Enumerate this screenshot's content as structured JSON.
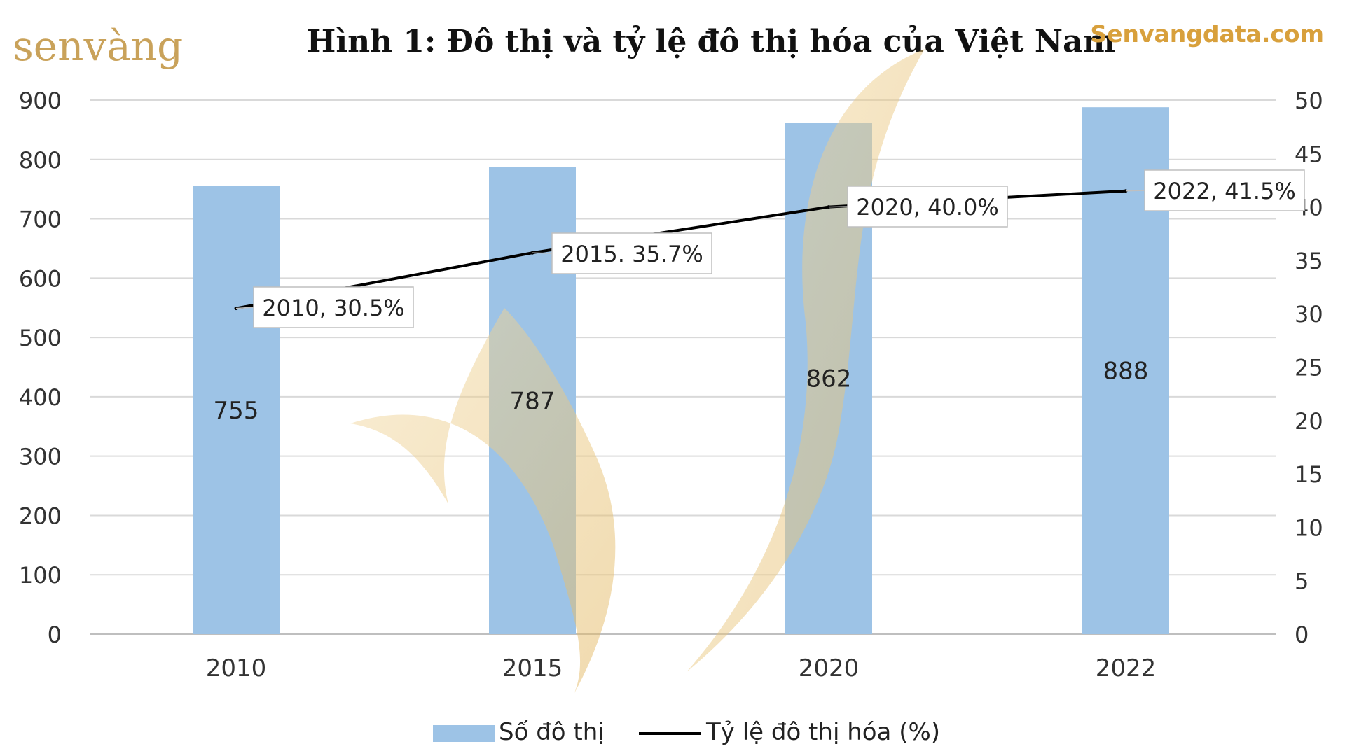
{
  "brand": {
    "logo_text": "senvàng",
    "site": "Senvangdata.com",
    "logo_color": "#c9a25a",
    "site_color": "#d8a03c"
  },
  "chart_data": {
    "type": "bar",
    "title": "Hình 1: Đô thị và tỷ lệ đô thị hóa của Việt Nam",
    "categories": [
      "2010",
      "2015",
      "2020",
      "2022"
    ],
    "series": [
      {
        "name": "Số đô thị",
        "type": "bar",
        "axis": "left",
        "color": "#9dc3e6",
        "values": [
          755,
          787,
          862,
          888
        ],
        "data_labels": [
          "755",
          "787",
          "862",
          "888"
        ]
      },
      {
        "name": "Tỷ lệ đô thị hóa (%)",
        "type": "line",
        "axis": "right",
        "color": "#000000",
        "values": [
          30.5,
          35.7,
          40.0,
          41.5
        ],
        "data_labels": [
          "2010, 30.5%",
          "2015. 35.7%",
          "2020, 40.0%",
          "2022, 41.5%"
        ]
      }
    ],
    "y_left": {
      "min": 0,
      "max": 900,
      "step": 100,
      "ticks": [
        "0",
        "100",
        "200",
        "300",
        "400",
        "500",
        "600",
        "700",
        "800",
        "900"
      ]
    },
    "y_right": {
      "min": 0,
      "max": 50,
      "step": 5,
      "ticks": [
        "0",
        "5",
        "10",
        "15",
        "20",
        "25",
        "30",
        "35",
        "40",
        "45",
        "50"
      ]
    },
    "grid": true,
    "legend": "bottom-center",
    "watermark": true
  }
}
